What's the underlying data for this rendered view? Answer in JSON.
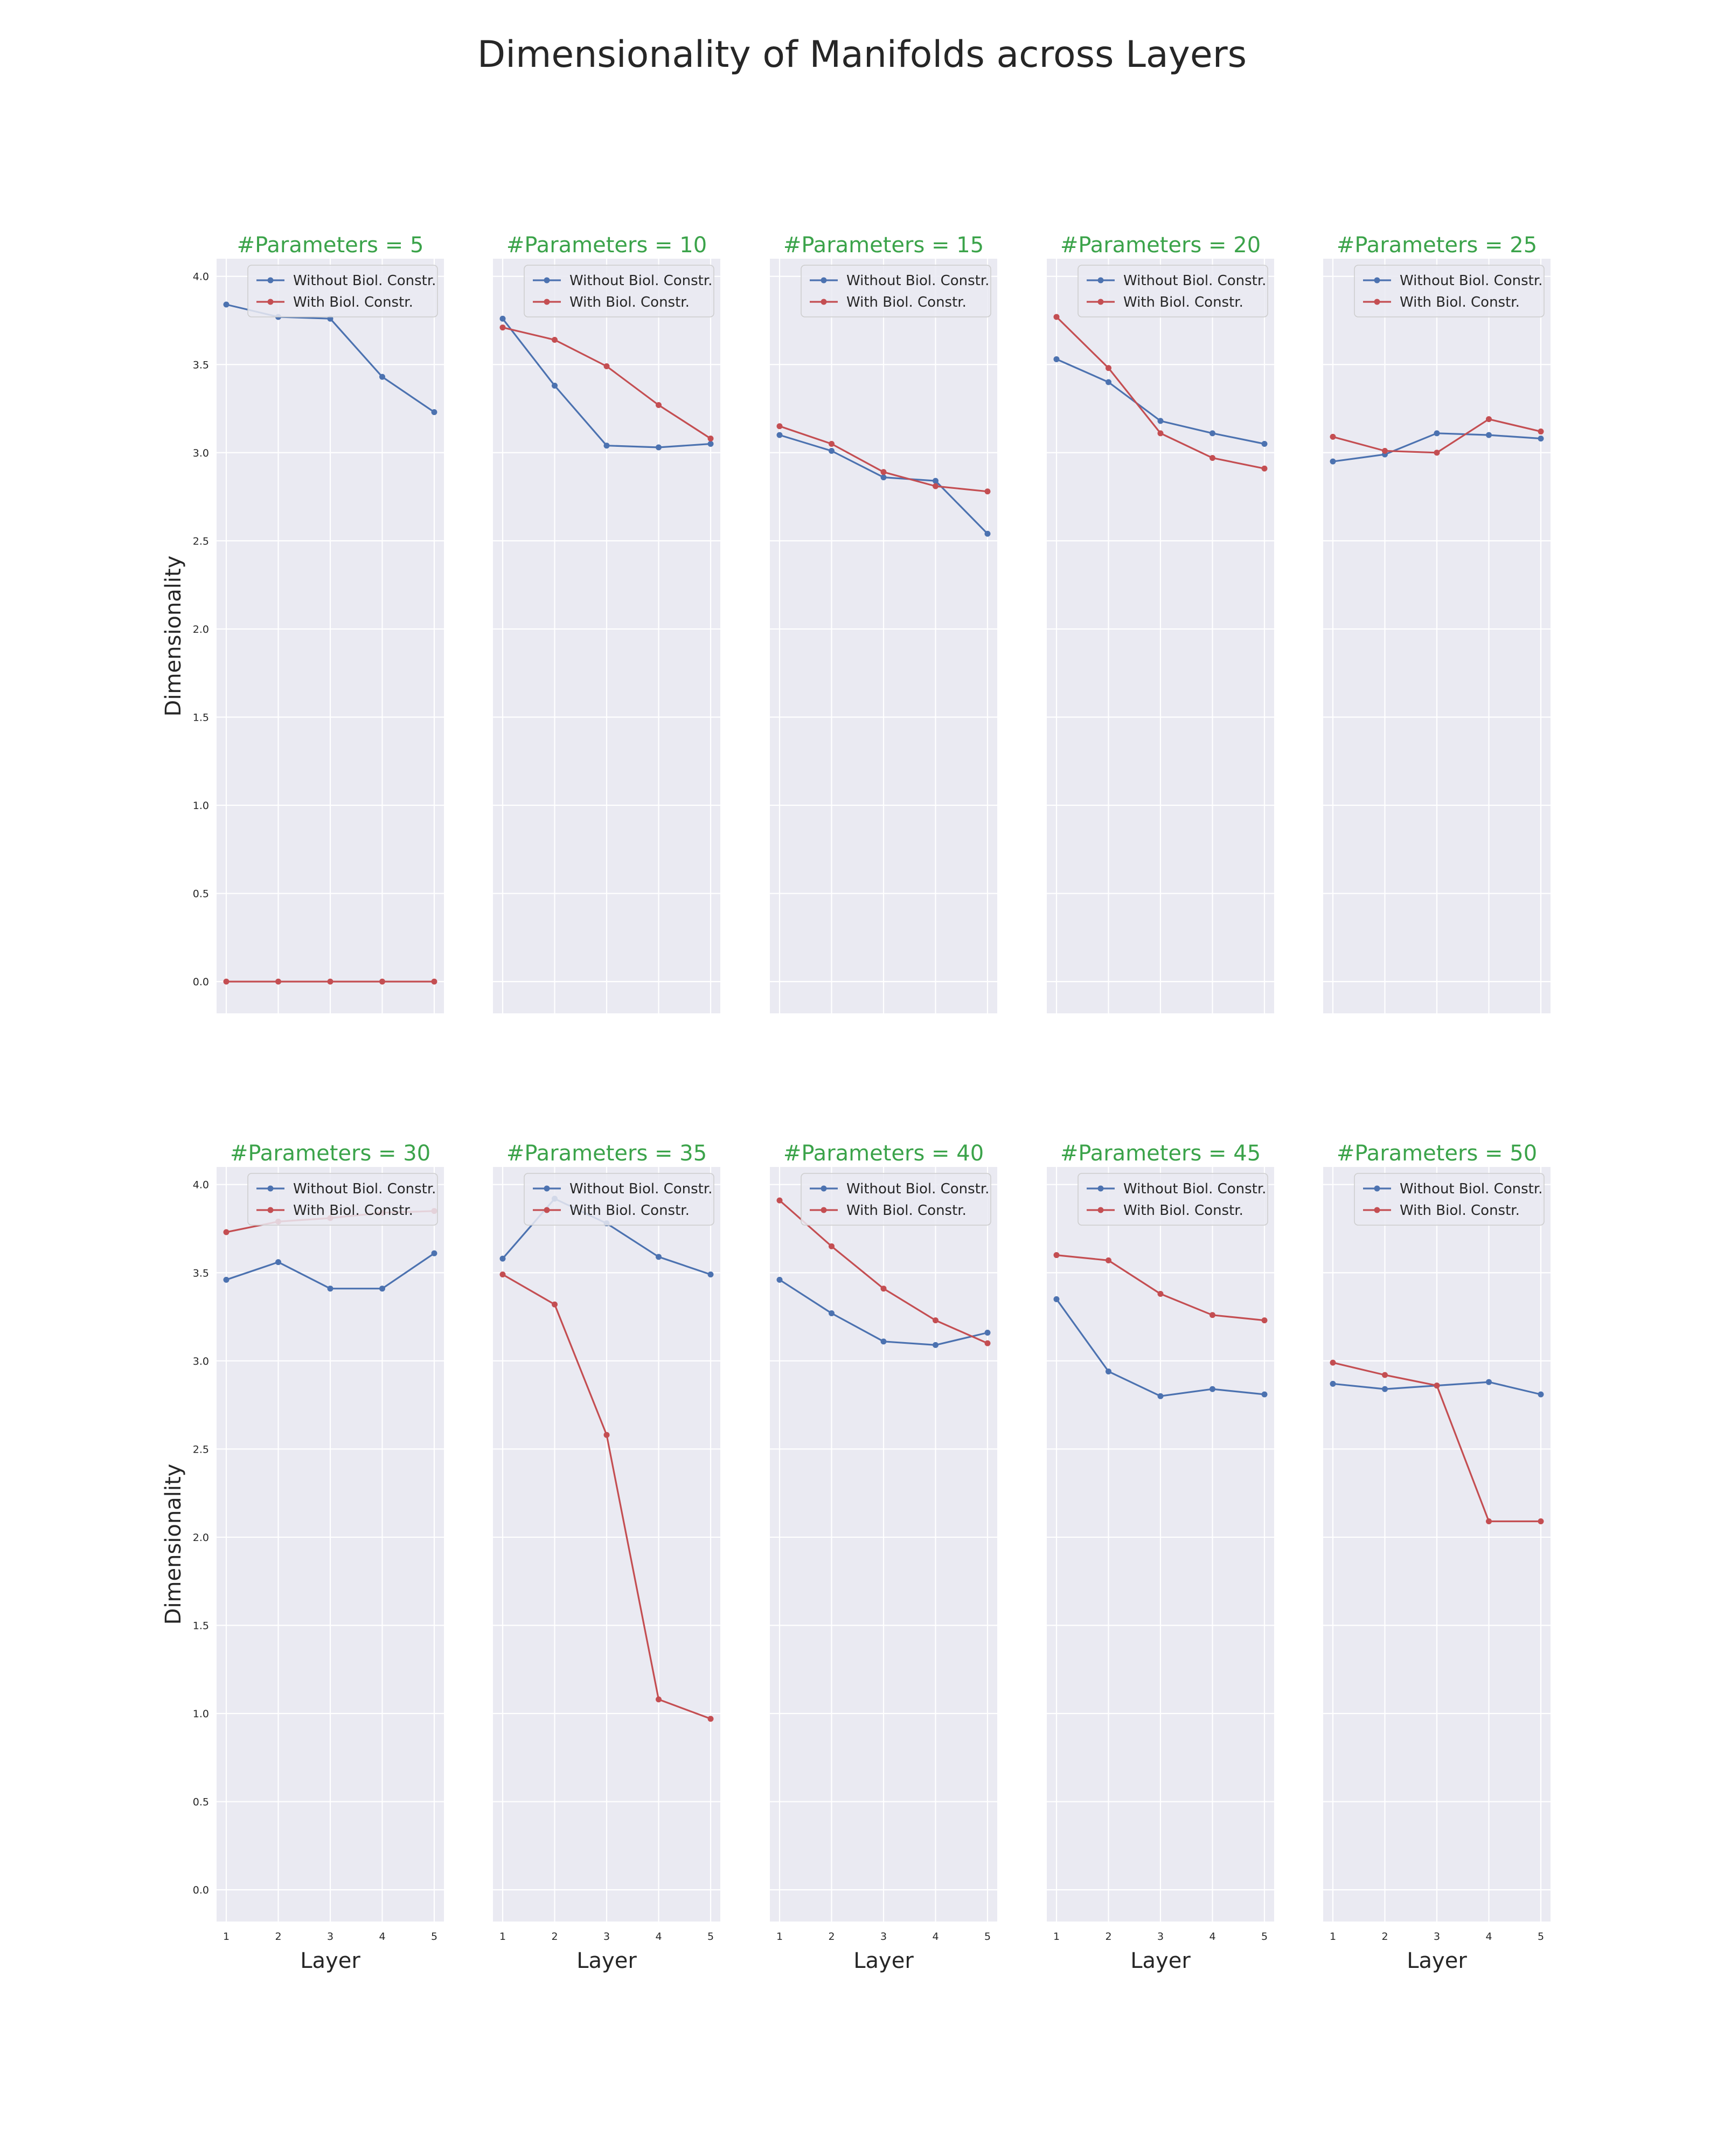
{
  "figure": {
    "title": "Dimensionality of Manifolds across Layers",
    "ylabel": "Dimensionality",
    "xlabel": "Layer",
    "colors": {
      "without": "#4c72b0",
      "with": "#c44e52",
      "panel_title": "#3ba34a",
      "panel_bg": "#eaeaf2",
      "grid": "#ffffff",
      "text": "#262626"
    }
  },
  "chart_data": [
    {
      "type": "line",
      "title": "#Parameters = 5",
      "x": [
        1,
        2,
        3,
        4,
        5
      ],
      "ylim": [
        -0.18,
        4.1
      ],
      "yticks": [
        "0.0",
        "0.5",
        "1.0",
        "1.5",
        "2.0",
        "2.5",
        "3.0",
        "3.5",
        "4.0"
      ],
      "xticks": [
        "1",
        "2",
        "3",
        "4",
        "5"
      ],
      "legend": "top-right",
      "series": [
        {
          "name": "Without Biol. Constr.",
          "values": [
            3.84,
            3.77,
            3.76,
            3.43,
            3.23
          ]
        },
        {
          "name": "With Biol. Constr.",
          "values": [
            0.0,
            0.0,
            0.0,
            0.0,
            0.0
          ]
        }
      ]
    },
    {
      "type": "line",
      "title": "#Parameters = 10",
      "x": [
        1,
        2,
        3,
        4,
        5
      ],
      "ylim": [
        -0.18,
        4.1
      ],
      "yticks": [
        "0.0",
        "0.5",
        "1.0",
        "1.5",
        "2.0",
        "2.5",
        "3.0",
        "3.5",
        "4.0"
      ],
      "xticks": [
        "1",
        "2",
        "3",
        "4",
        "5"
      ],
      "legend": "top-right",
      "series": [
        {
          "name": "Without Biol. Constr.",
          "values": [
            3.76,
            3.38,
            3.04,
            3.03,
            3.05
          ]
        },
        {
          "name": "With Biol. Constr.",
          "values": [
            3.71,
            3.64,
            3.49,
            3.27,
            3.08
          ]
        }
      ]
    },
    {
      "type": "line",
      "title": "#Parameters = 15",
      "x": [
        1,
        2,
        3,
        4,
        5
      ],
      "ylim": [
        -0.18,
        4.1
      ],
      "yticks": [
        "0.0",
        "0.5",
        "1.0",
        "1.5",
        "2.0",
        "2.5",
        "3.0",
        "3.5",
        "4.0"
      ],
      "xticks": [
        "1",
        "2",
        "3",
        "4",
        "5"
      ],
      "legend": "top-right",
      "series": [
        {
          "name": "Without Biol. Constr.",
          "values": [
            3.1,
            3.01,
            2.86,
            2.84,
            2.54
          ]
        },
        {
          "name": "With Biol. Constr.",
          "values": [
            3.15,
            3.05,
            2.89,
            2.81,
            2.78
          ]
        }
      ]
    },
    {
      "type": "line",
      "title": "#Parameters = 20",
      "x": [
        1,
        2,
        3,
        4,
        5
      ],
      "ylim": [
        -0.18,
        4.1
      ],
      "yticks": [
        "0.0",
        "0.5",
        "1.0",
        "1.5",
        "2.0",
        "2.5",
        "3.0",
        "3.5",
        "4.0"
      ],
      "xticks": [
        "1",
        "2",
        "3",
        "4",
        "5"
      ],
      "legend": "top-right",
      "series": [
        {
          "name": "Without Biol. Constr.",
          "values": [
            3.53,
            3.4,
            3.18,
            3.11,
            3.05
          ]
        },
        {
          "name": "With Biol. Constr.",
          "values": [
            3.77,
            3.48,
            3.11,
            2.97,
            2.91
          ]
        }
      ]
    },
    {
      "type": "line",
      "title": "#Parameters = 25",
      "x": [
        1,
        2,
        3,
        4,
        5
      ],
      "ylim": [
        -0.18,
        4.1
      ],
      "yticks": [
        "0.0",
        "0.5",
        "1.0",
        "1.5",
        "2.0",
        "2.5",
        "3.0",
        "3.5",
        "4.0"
      ],
      "xticks": [
        "1",
        "2",
        "3",
        "4",
        "5"
      ],
      "legend": "top-right",
      "series": [
        {
          "name": "Without Biol. Constr.",
          "values": [
            2.95,
            2.99,
            3.11,
            3.1,
            3.08
          ]
        },
        {
          "name": "With Biol. Constr.",
          "values": [
            3.09,
            3.01,
            3.0,
            3.19,
            3.12
          ]
        }
      ]
    },
    {
      "type": "line",
      "title": "#Parameters = 30",
      "x": [
        1,
        2,
        3,
        4,
        5
      ],
      "ylim": [
        -0.18,
        4.1
      ],
      "yticks": [
        "0.0",
        "0.5",
        "1.0",
        "1.5",
        "2.0",
        "2.5",
        "3.0",
        "3.5",
        "4.0"
      ],
      "xticks": [
        "1",
        "2",
        "3",
        "4",
        "5"
      ],
      "legend": "top-right",
      "series": [
        {
          "name": "Without Biol. Constr.",
          "values": [
            3.46,
            3.56,
            3.41,
            3.41,
            3.61
          ]
        },
        {
          "name": "With Biol. Constr.",
          "values": [
            3.73,
            3.79,
            3.81,
            3.84,
            3.85
          ]
        }
      ]
    },
    {
      "type": "line",
      "title": "#Parameters = 35",
      "x": [
        1,
        2,
        3,
        4,
        5
      ],
      "ylim": [
        -0.18,
        4.1
      ],
      "yticks": [
        "0.0",
        "0.5",
        "1.0",
        "1.5",
        "2.0",
        "2.5",
        "3.0",
        "3.5",
        "4.0"
      ],
      "xticks": [
        "1",
        "2",
        "3",
        "4",
        "5"
      ],
      "legend": "top-right",
      "series": [
        {
          "name": "Without Biol. Constr.",
          "values": [
            3.58,
            3.92,
            3.78,
            3.59,
            3.49
          ]
        },
        {
          "name": "With Biol. Constr.",
          "values": [
            3.49,
            3.32,
            2.58,
            1.08,
            0.97
          ]
        }
      ]
    },
    {
      "type": "line",
      "title": "#Parameters = 40",
      "x": [
        1,
        2,
        3,
        4,
        5
      ],
      "ylim": [
        -0.18,
        4.1
      ],
      "yticks": [
        "0.0",
        "0.5",
        "1.0",
        "1.5",
        "2.0",
        "2.5",
        "3.0",
        "3.5",
        "4.0"
      ],
      "xticks": [
        "1",
        "2",
        "3",
        "4",
        "5"
      ],
      "legend": "top-right",
      "series": [
        {
          "name": "Without Biol. Constr.",
          "values": [
            3.46,
            3.27,
            3.11,
            3.09,
            3.16
          ]
        },
        {
          "name": "With Biol. Constr.",
          "values": [
            3.91,
            3.65,
            3.41,
            3.23,
            3.1
          ]
        }
      ]
    },
    {
      "type": "line",
      "title": "#Parameters = 45",
      "x": [
        1,
        2,
        3,
        4,
        5
      ],
      "ylim": [
        -0.18,
        4.1
      ],
      "yticks": [
        "0.0",
        "0.5",
        "1.0",
        "1.5",
        "2.0",
        "2.5",
        "3.0",
        "3.5",
        "4.0"
      ],
      "xticks": [
        "1",
        "2",
        "3",
        "4",
        "5"
      ],
      "legend": "top-right",
      "series": [
        {
          "name": "Without Biol. Constr.",
          "values": [
            3.35,
            2.94,
            2.8,
            2.84,
            2.81
          ]
        },
        {
          "name": "With Biol. Constr.",
          "values": [
            3.6,
            3.57,
            3.38,
            3.26,
            3.23
          ]
        }
      ]
    },
    {
      "type": "line",
      "title": "#Parameters = 50",
      "x": [
        1,
        2,
        3,
        4,
        5
      ],
      "ylim": [
        -0.18,
        4.1
      ],
      "yticks": [
        "0.0",
        "0.5",
        "1.0",
        "1.5",
        "2.0",
        "2.5",
        "3.0",
        "3.5",
        "4.0"
      ],
      "xticks": [
        "1",
        "2",
        "3",
        "4",
        "5"
      ],
      "legend": "top-right",
      "series": [
        {
          "name": "Without Biol. Constr.",
          "values": [
            2.87,
            2.84,
            2.86,
            2.88,
            2.81
          ]
        },
        {
          "name": "With Biol. Constr.",
          "values": [
            2.99,
            2.92,
            2.86,
            2.09,
            2.09
          ]
        }
      ]
    }
  ]
}
